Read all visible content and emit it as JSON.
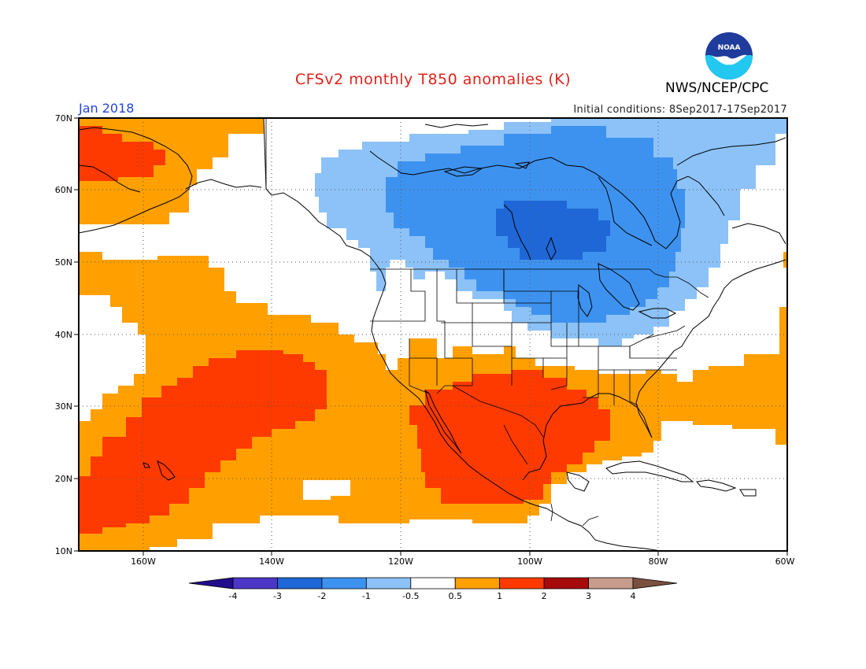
{
  "header": {
    "title": "CFSv2 monthly T850 anomalies (K)",
    "agency": "NWS/NCEP/CPC",
    "logo_text": "NOAA",
    "month": "Jan 2018",
    "initial_conditions": "Initial conditions: 8Sep2017-17Sep2017"
  },
  "axes": {
    "lon_labels": [
      "160W",
      "140W",
      "120W",
      "100W",
      "80W",
      "60W"
    ],
    "lat_labels": [
      "70N",
      "60N",
      "50N",
      "40N",
      "30N",
      "20N",
      "10N"
    ]
  },
  "legend": {
    "labels": [
      "-4",
      "-3",
      "-2",
      "-1",
      "-0.5",
      "0.5",
      "1",
      "2",
      "3",
      "4"
    ],
    "colors": [
      "#220c8c",
      "#4b36c8",
      "#1f67d6",
      "#3e92ef",
      "#8cc2f7",
      "#ffffff",
      "#ffa000",
      "#ff3a00",
      "#a60a0a",
      "#c89c8c",
      "#7a5040"
    ]
  },
  "colors": {
    "title": "#e0221a",
    "month": "#2244dd",
    "map_border": "#000000"
  }
}
